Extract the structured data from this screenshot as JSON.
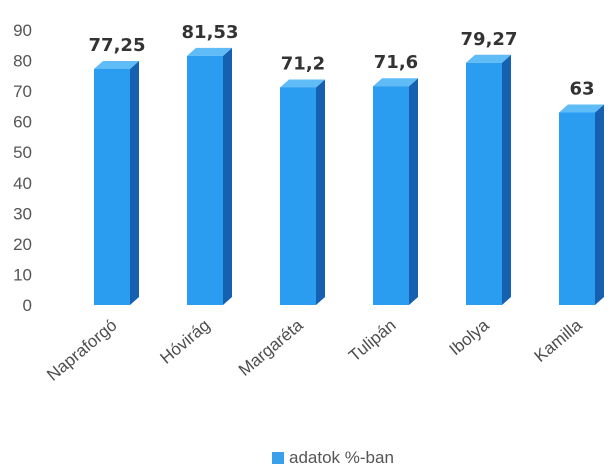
{
  "chart_data": {
    "type": "bar",
    "categories": [
      "Napraforgó",
      "Hóvirág",
      "Margaréta",
      "Tulipán",
      "Ibolya",
      "Kamilla"
    ],
    "series": [
      {
        "name": "adatok %-ban",
        "values": [
          77.25,
          81.53,
          71.2,
          71.6,
          79.27,
          63
        ],
        "labels": [
          "77,25",
          "81,53",
          "71,2",
          "71,6",
          "79,27",
          "63"
        ]
      }
    ],
    "ylim": [
      0,
      90
    ],
    "yticks": [
      0,
      10,
      20,
      30,
      40,
      50,
      60,
      70,
      80,
      90
    ],
    "grid": false,
    "legend_position": "bottom",
    "bar_style": "3d",
    "colors": {
      "front": "#2a9df0",
      "side": "#1560b0",
      "top": "#5fbcf7",
      "legend": "#3aa0ec"
    }
  }
}
